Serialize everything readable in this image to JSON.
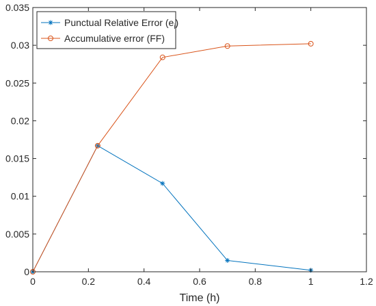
{
  "chart_data": {
    "type": "line",
    "title": "",
    "xlabel": "Time (h)",
    "ylabel": "",
    "xlim": [
      0,
      1.2
    ],
    "ylim": [
      0,
      0.035
    ],
    "xticks": [
      "0",
      "0.2",
      "0.4",
      "0.6",
      "0.8",
      "1",
      "1.2"
    ],
    "yticks": [
      "0",
      "0.005",
      "0.01",
      "0.015",
      "0.02",
      "0.025",
      "0.03",
      "0.035"
    ],
    "grid": false,
    "legend_position": "top-left",
    "series": [
      {
        "name": "Punctual Relative Error (e",
        "name_subscript": "i",
        "name_suffix": ")",
        "color": "#0072BD",
        "marker": "asterisk",
        "x": [
          0,
          0.2333,
          0.4667,
          0.7,
          1.0
        ],
        "y": [
          0,
          0.0167,
          0.0117,
          0.0015,
          0.0002
        ]
      },
      {
        "name": "Accumulative error (FF)",
        "color": "#D95319",
        "marker": "circle",
        "x": [
          0,
          0.2333,
          0.4667,
          0.7,
          1.0
        ],
        "y": [
          0,
          0.0167,
          0.0284,
          0.0299,
          0.0302
        ]
      }
    ]
  }
}
